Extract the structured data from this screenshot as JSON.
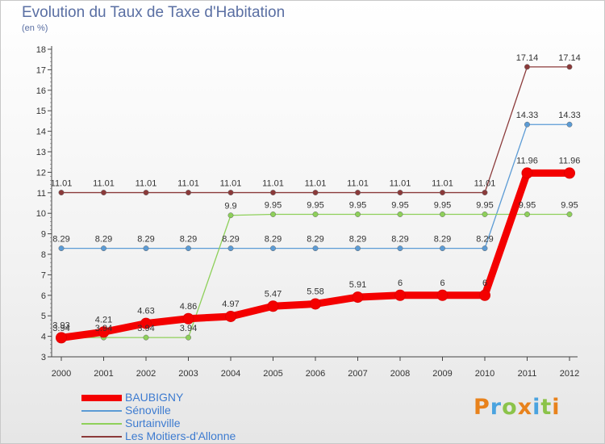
{
  "header": {
    "title": "Evolution du Taux de Taxe d'Habitation",
    "subtitle": "(en %)"
  },
  "logo": {
    "letters": [
      "P",
      "r",
      "o",
      "x",
      "i",
      "t",
      "i"
    ]
  },
  "chart_data": {
    "type": "line",
    "x": [
      "2000",
      "2001",
      "2002",
      "2003",
      "2004",
      "2005",
      "2006",
      "2007",
      "2008",
      "2009",
      "2010",
      "2011",
      "2012"
    ],
    "ylim": [
      3,
      18
    ],
    "yticks": [
      3,
      4,
      5,
      6,
      7,
      8,
      9,
      10,
      11,
      12,
      13,
      14,
      15,
      16,
      17,
      18
    ],
    "grid": false,
    "legend_position": "bottom-left",
    "series": [
      {
        "name": "Les Moitiers-d'Allonne",
        "color": "#8b3a3a",
        "values": [
          11.01,
          11.01,
          11.01,
          11.01,
          11.01,
          11.01,
          11.01,
          11.01,
          11.01,
          11.01,
          11.01,
          17.14,
          17.14
        ],
        "labels": [
          "11.01",
          "11.01",
          "11.01",
          "11.01",
          "11.01",
          "11.01",
          "11.01",
          "11.01",
          "11.01",
          "11.01",
          "11.01",
          "17.14",
          "17.14"
        ]
      },
      {
        "name": "Sénoville",
        "color": "#5b9bd5",
        "values": [
          8.29,
          8.29,
          8.29,
          8.29,
          8.29,
          8.29,
          8.29,
          8.29,
          8.29,
          8.29,
          8.29,
          14.33,
          14.33
        ],
        "labels": [
          "8.29",
          "8.29",
          "8.29",
          "8.29",
          "8.29",
          "8.29",
          "8.29",
          "8.29",
          "8.29",
          "8.29",
          "8.29",
          "14.33",
          "14.33"
        ]
      },
      {
        "name": "Surtainville",
        "color": "#8ed05a",
        "values": [
          3.94,
          3.94,
          3.94,
          3.94,
          9.9,
          9.95,
          9.95,
          9.95,
          9.95,
          9.95,
          9.95,
          9.95,
          9.95
        ],
        "labels": [
          "3.94",
          "3.94",
          "3.94",
          "3.94",
          "9.9",
          "9.95",
          "9.95",
          "9.95",
          "9.95",
          "9.95",
          "9.95",
          "9.95",
          "9.95"
        ]
      },
      {
        "name": "BAUBIGNY",
        "color": "#f40000",
        "values": [
          3.93,
          4.21,
          4.63,
          4.86,
          4.97,
          5.47,
          5.58,
          5.91,
          6,
          6,
          6,
          11.96,
          11.96
        ],
        "labels": [
          "3.93",
          "4.21",
          "4.63",
          "4.86",
          "4.97",
          "5.47",
          "5.58",
          "5.91",
          "6",
          "6",
          "6",
          "11.96",
          "11.96"
        ]
      }
    ],
    "legend_order": [
      "BAUBIGNY",
      "Sénoville",
      "Surtainville",
      "Les Moitiers-d'Allonne"
    ]
  }
}
